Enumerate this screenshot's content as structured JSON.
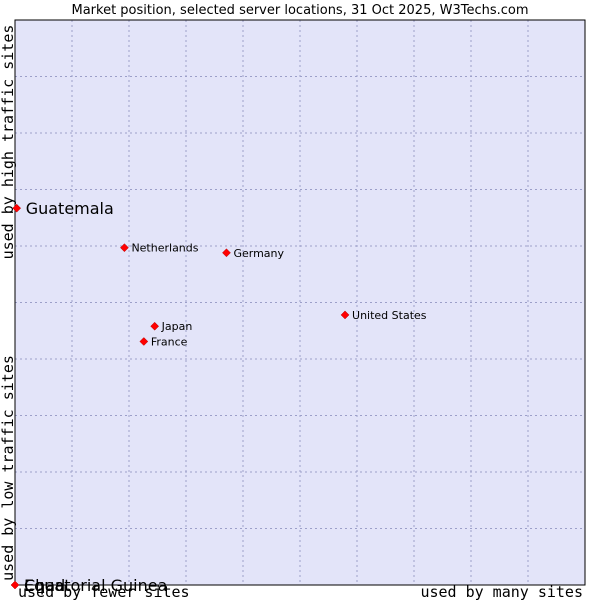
{
  "chart_data": {
    "type": "scatter",
    "title": "Market position, selected server locations, 31 Oct 2025, W3Techs.com",
    "xlabel_low": "used by fewer sites",
    "xlabel_high": "used by many sites",
    "ylabel_low": "used by low traffic sites",
    "ylabel_high": "used by high traffic sites",
    "xlim": [
      0,
      100
    ],
    "ylim": [
      0,
      100
    ],
    "grid": true,
    "points": [
      {
        "name": "Guatemala",
        "x": 0.3,
        "y": 66.7,
        "emphasis": true
      },
      {
        "name": "Netherlands",
        "x": 19.2,
        "y": 59.7,
        "emphasis": false
      },
      {
        "name": "Germany",
        "x": 37.1,
        "y": 58.8,
        "emphasis": false
      },
      {
        "name": "United States",
        "x": 57.9,
        "y": 47.8,
        "emphasis": false
      },
      {
        "name": "Japan",
        "x": 24.5,
        "y": 45.8,
        "emphasis": false
      },
      {
        "name": "France",
        "x": 22.6,
        "y": 43.1,
        "emphasis": false
      },
      {
        "name": "Chad",
        "x": 0.0,
        "y": 0.0,
        "emphasis": true
      },
      {
        "name": "Equatorial Guinea",
        "x": 0.0,
        "y": 0.0,
        "emphasis": true
      }
    ],
    "colors": {
      "plot_background": "#e3e4f9",
      "grid": "#9c9fc9",
      "marker": "#ff0000"
    }
  }
}
